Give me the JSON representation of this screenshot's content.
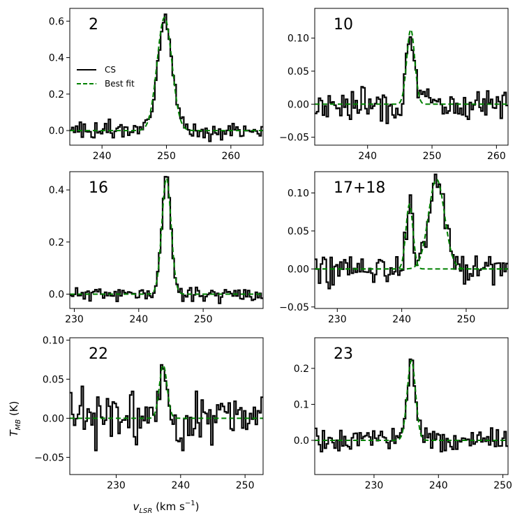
{
  "figure": {
    "ylabel_main": "T",
    "ylabel_sub": "MB",
    "ylabel_unit": " (K)",
    "xlabel_main": "v",
    "xlabel_sub": "LSR",
    "xlabel_unit": " (km s",
    "xlabel_exp": "−1",
    "xlabel_close": ")"
  },
  "legend": {
    "data_label": "CS",
    "fit_label": "Best fit"
  },
  "colors": {
    "data": "#000000",
    "fit": "#008000",
    "frame": "#000000",
    "background": "#ffffff"
  },
  "chart_data": [
    {
      "type": "line",
      "label": "2",
      "xlim": [
        235,
        265
      ],
      "ylim": [
        -0.08,
        0.67
      ],
      "xticks": [
        240,
        250,
        260
      ],
      "xtick_labels": [
        "240",
        "250",
        "260"
      ],
      "yticks": [
        0.0,
        0.2,
        0.4,
        0.6
      ],
      "ytick_labels": [
        "0.0",
        "0.2",
        "0.4",
        "0.6"
      ],
      "series": [
        {
          "name": "CS",
          "style": "steps",
          "x_range": [
            235,
            265
          ],
          "points": 100,
          "seed": 3,
          "noise": 0.023
        },
        {
          "name": "Best fit",
          "style": "dashed",
          "components": [
            {
              "center": 249.7,
              "amplitude": 0.62,
              "sigma": 1.15
            }
          ]
        }
      ]
    },
    {
      "type": "line",
      "label": "10",
      "xlim": [
        231.8,
        261.8
      ],
      "ylim": [
        -0.062,
        0.145
      ],
      "xticks": [
        240,
        250,
        260
      ],
      "xtick_labels": [
        "240",
        "250",
        "260"
      ],
      "yticks": [
        -0.05,
        0.0,
        0.05,
        0.1
      ],
      "ytick_labels": [
        "−0.05",
        "0.00",
        "0.05",
        "0.10"
      ],
      "series": [
        {
          "name": "CS",
          "style": "steps",
          "x_range": [
            231.8,
            261.8
          ],
          "points": 100,
          "seed": 7,
          "noise": 0.012
        },
        {
          "name": "Best fit",
          "style": "dashed",
          "components": [
            {
              "center": 246.7,
              "amplitude": 0.113,
              "sigma": 0.62
            }
          ]
        }
      ]
    },
    {
      "type": "line",
      "label": "16",
      "xlim": [
        229.3,
        259.3
      ],
      "ylim": [
        -0.055,
        0.47
      ],
      "xticks": [
        230,
        240,
        250
      ],
      "xtick_labels": [
        "230",
        "240",
        "250"
      ],
      "yticks": [
        0.0,
        0.2,
        0.4
      ],
      "ytick_labels": [
        "0.0",
        "0.2",
        "0.4"
      ],
      "series": [
        {
          "name": "CS",
          "style": "steps",
          "x_range": [
            229.3,
            259.3
          ],
          "points": 100,
          "seed": 11,
          "noise": 0.013
        },
        {
          "name": "Best fit",
          "style": "dashed",
          "components": [
            {
              "center": 244.3,
              "amplitude": 0.445,
              "sigma": 0.72
            }
          ]
        }
      ]
    },
    {
      "type": "line",
      "label": "17+18",
      "xlim": [
        226.5,
        256.5
      ],
      "ylim": [
        -0.052,
        0.128
      ],
      "xticks": [
        230,
        240,
        250
      ],
      "xtick_labels": [
        "230",
        "240",
        "250"
      ],
      "yticks": [
        -0.05,
        0.0,
        0.05,
        0.1
      ],
      "ytick_labels": [
        "−0.05",
        "0.00",
        "0.05",
        "0.10"
      ],
      "series": [
        {
          "name": "CS",
          "style": "steps",
          "x_range": [
            226.5,
            256.5
          ],
          "points": 100,
          "seed": 19,
          "noise": 0.011
        },
        {
          "name": "Best fit",
          "style": "dashed",
          "separate_components": true,
          "components": [
            {
              "center": 241.2,
              "amplitude": 0.085,
              "sigma": 0.55
            },
            {
              "center": 245.4,
              "amplitude": 0.118,
              "sigma": 1.25
            }
          ]
        }
      ]
    },
    {
      "type": "line",
      "label": "22",
      "xlim": [
        222.8,
        252.8
      ],
      "ylim": [
        -0.072,
        0.103
      ],
      "xticks": [
        230,
        240,
        250
      ],
      "xtick_labels": [
        "230",
        "240",
        "250"
      ],
      "yticks": [
        -0.05,
        0.0,
        0.05,
        0.1
      ],
      "ytick_labels": [
        "−0.05",
        "0.00",
        "0.05",
        "0.10"
      ],
      "series": [
        {
          "name": "CS",
          "style": "steps",
          "x_range": [
            222.8,
            252.8
          ],
          "points": 100,
          "seed": 23,
          "noise": 0.017
        },
        {
          "name": "Best fit",
          "style": "dashed",
          "components": [
            {
              "center": 237.3,
              "amplitude": 0.068,
              "sigma": 0.6
            }
          ]
        }
      ]
    },
    {
      "type": "line",
      "label": "23",
      "xlim": [
        220.8,
        250.8
      ],
      "ylim": [
        -0.095,
        0.285
      ],
      "xticks": [
        230,
        240,
        250
      ],
      "xtick_labels": [
        "230",
        "240",
        "250"
      ],
      "yticks": [
        0.0,
        0.1,
        0.2
      ],
      "ytick_labels": [
        "0.0",
        "0.1",
        "0.2"
      ],
      "series": [
        {
          "name": "CS",
          "style": "steps",
          "x_range": [
            220.8,
            250.8
          ],
          "points": 100,
          "seed": 29,
          "noise": 0.016
        },
        {
          "name": "Best fit",
          "style": "dashed",
          "components": [
            {
              "center": 235.8,
              "amplitude": 0.222,
              "sigma": 0.65
            }
          ]
        }
      ]
    }
  ]
}
